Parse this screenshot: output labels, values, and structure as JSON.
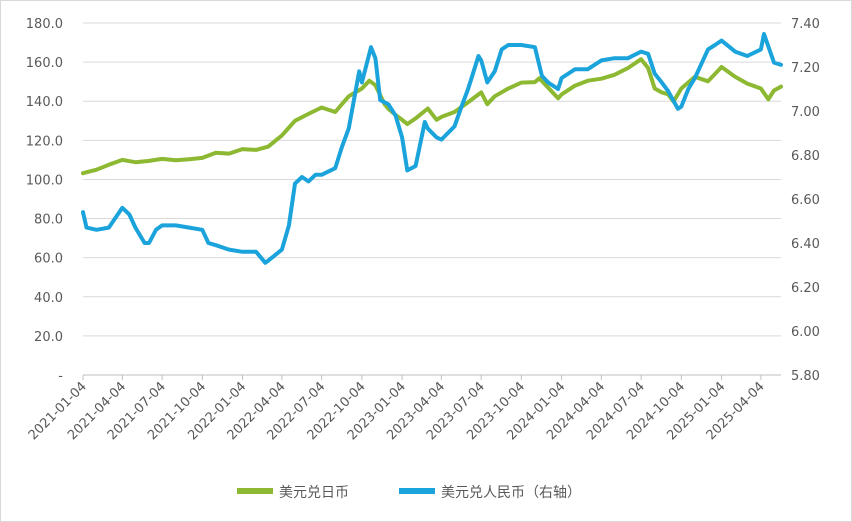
{
  "chart_data": {
    "type": "line",
    "title": "",
    "xlabel": "",
    "ylabel": "",
    "y_left": {
      "ylim": [
        0,
        180
      ],
      "ticks": [
        "-",
        "20.0",
        "40.0",
        "60.0",
        "80.0",
        "100.0",
        "120.0",
        "140.0",
        "160.0",
        "180.0"
      ]
    },
    "y_right": {
      "ylim": [
        5.8,
        7.4
      ],
      "ticks": [
        "5.80",
        "6.00",
        "6.20",
        "6.40",
        "6.60",
        "6.80",
        "7.00",
        "7.20",
        "7.40"
      ]
    },
    "x_ticks": [
      "2021-01-04",
      "2021-04-04",
      "2021-07-04",
      "2021-10-04",
      "2022-01-04",
      "2022-04-04",
      "2022-07-04",
      "2022-10-04",
      "2023-01-04",
      "2023-04-04",
      "2023-07-04",
      "2023-10-04",
      "2024-01-04",
      "2024-04-04",
      "2024-07-04",
      "2024-10-04",
      "2025-01-04",
      "2025-04-04"
    ],
    "grid": true,
    "legend_position": "bottom",
    "series": [
      {
        "name": "美元兑日币",
        "axis": "left",
        "color": "#8cb832",
        "points": [
          [
            "2021-01-04",
            103.2
          ],
          [
            "2021-02-04",
            105.0
          ],
          [
            "2021-03-04",
            107.5
          ],
          [
            "2021-04-04",
            110.0
          ],
          [
            "2021-05-04",
            108.8
          ],
          [
            "2021-06-04",
            109.5
          ],
          [
            "2021-07-04",
            110.5
          ],
          [
            "2021-08-04",
            109.8
          ],
          [
            "2021-09-04",
            110.3
          ],
          [
            "2021-10-04",
            111.0
          ],
          [
            "2021-11-04",
            113.7
          ],
          [
            "2021-12-04",
            113.2
          ],
          [
            "2022-01-04",
            115.5
          ],
          [
            "2022-02-04",
            115.1
          ],
          [
            "2022-03-04",
            116.8
          ],
          [
            "2022-04-04",
            122.5
          ],
          [
            "2022-05-04",
            130.0
          ],
          [
            "2022-06-04",
            133.5
          ],
          [
            "2022-07-04",
            136.8
          ],
          [
            "2022-08-04",
            134.5
          ],
          [
            "2022-09-04",
            142.5
          ],
          [
            "2022-10-04",
            146.5
          ],
          [
            "2022-10-21",
            150.5
          ],
          [
            "2022-11-04",
            148.2
          ],
          [
            "2022-11-25",
            138.5
          ],
          [
            "2022-12-04",
            136.0
          ],
          [
            "2022-12-20",
            133.0
          ],
          [
            "2023-01-04",
            130.5
          ],
          [
            "2023-01-16",
            128.3
          ],
          [
            "2023-02-04",
            131.2
          ],
          [
            "2023-03-04",
            136.3
          ],
          [
            "2023-03-24",
            130.5
          ],
          [
            "2023-04-04",
            132.0
          ],
          [
            "2023-05-04",
            134.5
          ],
          [
            "2023-06-04",
            139.5
          ],
          [
            "2023-07-04",
            144.5
          ],
          [
            "2023-07-18",
            138.5
          ],
          [
            "2023-08-04",
            142.5
          ],
          [
            "2023-09-04",
            146.5
          ],
          [
            "2023-10-04",
            149.5
          ],
          [
            "2023-11-04",
            149.8
          ],
          [
            "2023-11-14",
            151.7
          ],
          [
            "2023-12-04",
            147.0
          ],
          [
            "2023-12-27",
            141.5
          ],
          [
            "2024-01-04",
            143.5
          ],
          [
            "2024-02-04",
            148.0
          ],
          [
            "2024-03-04",
            150.5
          ],
          [
            "2024-04-04",
            151.5
          ],
          [
            "2024-05-04",
            153.5
          ],
          [
            "2024-06-04",
            157.0
          ],
          [
            "2024-07-04",
            161.5
          ],
          [
            "2024-07-20",
            157.0
          ],
          [
            "2024-08-04",
            146.5
          ],
          [
            "2024-08-20",
            144.5
          ],
          [
            "2024-09-04",
            143.5
          ],
          [
            "2024-09-16",
            139.8
          ],
          [
            "2024-10-04",
            146.5
          ],
          [
            "2024-11-04",
            152.5
          ],
          [
            "2024-12-04",
            150.2
          ],
          [
            "2025-01-04",
            157.5
          ],
          [
            "2025-02-04",
            152.5
          ],
          [
            "2025-03-04",
            149.0
          ],
          [
            "2025-04-04",
            146.5
          ],
          [
            "2025-04-21",
            141.0
          ],
          [
            "2025-05-04",
            145.5
          ],
          [
            "2025-05-20",
            147.5
          ]
        ]
      },
      {
        "name": "美元兑人民币（右轴）",
        "axis": "right",
        "color": "#1ba3dc",
        "points": [
          [
            "2021-01-04",
            6.54
          ],
          [
            "2021-01-12",
            6.47
          ],
          [
            "2021-02-04",
            6.46
          ],
          [
            "2021-03-04",
            6.47
          ],
          [
            "2021-04-04",
            6.56
          ],
          [
            "2021-04-20",
            6.53
          ],
          [
            "2021-05-04",
            6.47
          ],
          [
            "2021-05-25",
            6.4
          ],
          [
            "2021-06-04",
            6.4
          ],
          [
            "2021-06-20",
            6.46
          ],
          [
            "2021-07-04",
            6.48
          ],
          [
            "2021-08-04",
            6.48
          ],
          [
            "2021-09-04",
            6.47
          ],
          [
            "2021-10-04",
            6.46
          ],
          [
            "2021-10-18",
            6.4
          ],
          [
            "2021-11-04",
            6.39
          ],
          [
            "2021-12-04",
            6.37
          ],
          [
            "2022-01-04",
            6.36
          ],
          [
            "2022-02-04",
            6.36
          ],
          [
            "2022-02-25",
            6.31
          ],
          [
            "2022-03-04",
            6.32
          ],
          [
            "2022-04-04",
            6.37
          ],
          [
            "2022-04-20",
            6.48
          ],
          [
            "2022-05-04",
            6.67
          ],
          [
            "2022-05-20",
            6.7
          ],
          [
            "2022-06-04",
            6.68
          ],
          [
            "2022-06-20",
            6.71
          ],
          [
            "2022-07-04",
            6.71
          ],
          [
            "2022-08-04",
            6.74
          ],
          [
            "2022-08-20",
            6.84
          ],
          [
            "2022-09-04",
            6.92
          ],
          [
            "2022-09-28",
            7.18
          ],
          [
            "2022-10-04",
            7.13
          ],
          [
            "2022-10-25",
            7.29
          ],
          [
            "2022-11-04",
            7.24
          ],
          [
            "2022-11-15",
            7.05
          ],
          [
            "2022-12-04",
            7.03
          ],
          [
            "2022-12-20",
            6.98
          ],
          [
            "2023-01-04",
            6.88
          ],
          [
            "2023-01-16",
            6.73
          ],
          [
            "2023-02-04",
            6.75
          ],
          [
            "2023-02-25",
            6.95
          ],
          [
            "2023-03-04",
            6.92
          ],
          [
            "2023-03-24",
            6.88
          ],
          [
            "2023-04-04",
            6.87
          ],
          [
            "2023-05-04",
            6.93
          ],
          [
            "2023-05-20",
            7.02
          ],
          [
            "2023-06-04",
            7.1
          ],
          [
            "2023-06-28",
            7.25
          ],
          [
            "2023-07-04",
            7.23
          ],
          [
            "2023-07-18",
            7.13
          ],
          [
            "2023-08-04",
            7.18
          ],
          [
            "2023-08-20",
            7.28
          ],
          [
            "2023-09-04",
            7.3
          ],
          [
            "2023-10-04",
            7.3
          ],
          [
            "2023-11-04",
            7.29
          ],
          [
            "2023-11-20",
            7.16
          ],
          [
            "2023-12-04",
            7.13
          ],
          [
            "2023-12-27",
            7.1
          ],
          [
            "2024-01-04",
            7.15
          ],
          [
            "2024-02-04",
            7.19
          ],
          [
            "2024-03-04",
            7.19
          ],
          [
            "2024-04-04",
            7.23
          ],
          [
            "2024-05-04",
            7.24
          ],
          [
            "2024-06-04",
            7.24
          ],
          [
            "2024-07-04",
            7.27
          ],
          [
            "2024-07-20",
            7.26
          ],
          [
            "2024-08-04",
            7.17
          ],
          [
            "2024-08-20",
            7.13
          ],
          [
            "2024-09-04",
            7.09
          ],
          [
            "2024-09-26",
            7.01
          ],
          [
            "2024-10-04",
            7.02
          ],
          [
            "2024-10-20",
            7.1
          ],
          [
            "2024-11-04",
            7.15
          ],
          [
            "2024-12-04",
            7.28
          ],
          [
            "2024-12-20",
            7.3
          ],
          [
            "2025-01-04",
            7.32
          ],
          [
            "2025-02-04",
            7.27
          ],
          [
            "2025-03-04",
            7.25
          ],
          [
            "2025-04-04",
            7.28
          ],
          [
            "2025-04-11",
            7.35
          ],
          [
            "2025-05-04",
            7.22
          ],
          [
            "2025-05-20",
            7.21
          ]
        ]
      }
    ]
  }
}
